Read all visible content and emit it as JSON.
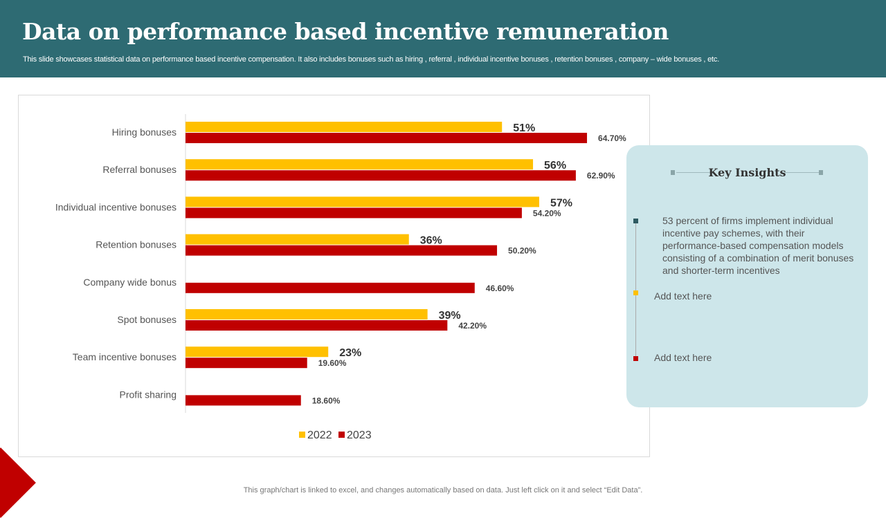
{
  "header": {
    "title": "Data on performance based incentive remuneration",
    "subtitle": "This slide showcases statistical data on performance based incentive compensation. It also includes bonuses such as hiring , referral ,  individual incentive bonuses , retention bonuses , company – wide bonuses , etc."
  },
  "chart_data": {
    "type": "bar",
    "orientation": "horizontal",
    "categories": [
      "Hiring bonuses",
      "Referral bonuses",
      "Individual incentive bonuses",
      "Retention bonuses",
      "Company wide bonus",
      "Spot bonuses",
      "Team incentive bonuses",
      "Profit sharing"
    ],
    "series": [
      {
        "name": "2022",
        "color": "#ffc000",
        "values": [
          51,
          56,
          57,
          36,
          null,
          39,
          23,
          null
        ],
        "labels": [
          "51%",
          "56%",
          "57%",
          "36%",
          null,
          "39%",
          "23%",
          null
        ]
      },
      {
        "name": "2023",
        "color": "#c00000",
        "values": [
          64.7,
          62.9,
          54.2,
          50.2,
          46.6,
          42.2,
          19.6,
          18.6
        ],
        "labels": [
          "64.70%",
          "62.90%",
          "54.20%",
          "50.20%",
          "46.60%",
          "42.20%",
          "19.60%",
          "18.60%"
        ]
      }
    ],
    "legend": "bottom",
    "grid": false,
    "xlim": [
      0,
      75
    ]
  },
  "insights": {
    "title": "Key Insights",
    "items": [
      {
        "text": "53 percent of firms implement individual incentive pay schemes, with their performance-based compensation models consisting of a combination of merit bonuses and shorter-term incentives",
        "color": "#2e5a61"
      },
      {
        "text": "Add text here",
        "color": "#ffc000"
      },
      {
        "text": "Add text here",
        "color": "#c00000"
      }
    ]
  },
  "footer": "This graph/chart is linked to excel,  and changes automatically based on data. Just left click on it and select “Edit Data”."
}
